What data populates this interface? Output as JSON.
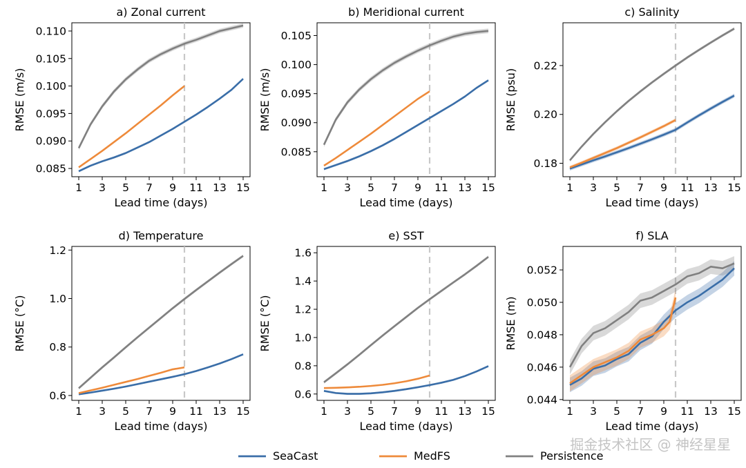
{
  "chart_data": [
    {
      "type": "line",
      "title": "a) Zonal current",
      "xlabel": "Lead time (days)",
      "ylabel": "RMSE (m/s)",
      "xlim": [
        1,
        15
      ],
      "ylim": [
        0.0835,
        0.1115
      ],
      "yticks": [
        0.085,
        0.09,
        0.095,
        0.1,
        0.105,
        0.11
      ],
      "yticklabels": [
        "0.085",
        "0.090",
        "0.095",
        "0.100",
        "0.105",
        "0.110"
      ],
      "xticks": [
        1,
        3,
        5,
        7,
        9,
        11,
        13,
        15
      ],
      "xticklabels": [
        "1",
        "3",
        "5",
        "7",
        "9",
        "11",
        "13",
        "15"
      ],
      "vline_x": 10,
      "series": [
        {
          "name": "SeaCast",
          "x": [
            1,
            2,
            3,
            4,
            5,
            6,
            7,
            8,
            9,
            10,
            11,
            12,
            13,
            14,
            15
          ],
          "values": [
            0.0845,
            0.0855,
            0.0863,
            0.087,
            0.0878,
            0.0888,
            0.0898,
            0.091,
            0.0922,
            0.0935,
            0.0948,
            0.0962,
            0.0977,
            0.0993,
            0.1013
          ],
          "band": 0.0002
        },
        {
          "name": "MedFS",
          "x": [
            1,
            2,
            3,
            4,
            5,
            6,
            7,
            8,
            9,
            10
          ],
          "values": [
            0.0852,
            0.0867,
            0.0882,
            0.0898,
            0.0914,
            0.0931,
            0.0948,
            0.0965,
            0.0983,
            0.1
          ],
          "band": 0.0001
        },
        {
          "name": "Persistence",
          "x": [
            1,
            2,
            3,
            4,
            5,
            6,
            7,
            8,
            9,
            10,
            11,
            12,
            13,
            14,
            15
          ],
          "values": [
            0.0887,
            0.093,
            0.0963,
            0.099,
            0.1012,
            0.103,
            0.1046,
            0.1058,
            0.1068,
            0.1077,
            0.1084,
            0.1092,
            0.11,
            0.1105,
            0.111
          ],
          "band": 0.0004
        }
      ]
    },
    {
      "type": "line",
      "title": "b) Meridional current",
      "xlabel": "Lead time (days)",
      "ylabel": "RMSE (m/s)",
      "xlim": [
        1,
        15
      ],
      "ylim": [
        0.0807,
        0.1072
      ],
      "yticks": [
        0.085,
        0.09,
        0.095,
        0.1,
        0.105
      ],
      "yticklabels": [
        "0.085",
        "0.090",
        "0.095",
        "0.100",
        "0.105"
      ],
      "xticks": [
        1,
        3,
        5,
        7,
        9,
        11,
        13,
        15
      ],
      "xticklabels": [
        "1",
        "3",
        "5",
        "7",
        "9",
        "11",
        "13",
        "15"
      ],
      "vline_x": 10,
      "series": [
        {
          "name": "SeaCast",
          "x": [
            1,
            2,
            3,
            4,
            5,
            6,
            7,
            8,
            9,
            10,
            11,
            12,
            13,
            14,
            15
          ],
          "values": [
            0.082,
            0.0827,
            0.0834,
            0.0842,
            0.0851,
            0.0861,
            0.0872,
            0.0884,
            0.0896,
            0.0908,
            0.092,
            0.0932,
            0.0945,
            0.096,
            0.0973
          ],
          "band": 0.0002
        },
        {
          "name": "MedFS",
          "x": [
            1,
            2,
            3,
            4,
            5,
            6,
            7,
            8,
            9,
            10
          ],
          "values": [
            0.0826,
            0.0839,
            0.0853,
            0.0867,
            0.0881,
            0.0896,
            0.0911,
            0.0926,
            0.0941,
            0.0954
          ],
          "band": 0.0001
        },
        {
          "name": "Persistence",
          "x": [
            1,
            2,
            3,
            4,
            5,
            6,
            7,
            8,
            9,
            10,
            11,
            12,
            13,
            14,
            15
          ],
          "values": [
            0.0862,
            0.0905,
            0.0935,
            0.0957,
            0.0975,
            0.099,
            0.1003,
            0.1014,
            0.1024,
            0.1033,
            0.1041,
            0.1048,
            0.1053,
            0.1056,
            0.1058
          ],
          "band": 0.0004
        }
      ]
    },
    {
      "type": "line",
      "title": "c) Salinity",
      "xlabel": "Lead time (days)",
      "ylabel": "RMSE (psu)",
      "xlim": [
        1,
        15
      ],
      "ylim": [
        0.1745,
        0.2375
      ],
      "yticks": [
        0.18,
        0.2,
        0.22
      ],
      "yticklabels": [
        "0.18",
        "0.20",
        "0.22"
      ],
      "xticks": [
        1,
        3,
        5,
        7,
        9,
        11,
        13,
        15
      ],
      "xticklabels": [
        "1",
        "3",
        "5",
        "7",
        "9",
        "11",
        "13",
        "15"
      ],
      "vline_x": 10,
      "series": [
        {
          "name": "SeaCast",
          "x": [
            1,
            2,
            3,
            4,
            5,
            6,
            7,
            8,
            9,
            10,
            11,
            12,
            13,
            14,
            15
          ],
          "values": [
            0.1778,
            0.1795,
            0.1812,
            0.1828,
            0.1845,
            0.1862,
            0.188,
            0.1898,
            0.1917,
            0.1937,
            0.1967,
            0.1996,
            0.2024,
            0.2051,
            0.2077
          ],
          "band": 0.0008
        },
        {
          "name": "MedFS",
          "x": [
            1,
            2,
            3,
            4,
            5,
            6,
            7,
            8,
            9,
            10
          ],
          "values": [
            0.1783,
            0.1802,
            0.1822,
            0.1842,
            0.1862,
            0.1884,
            0.1906,
            0.1929,
            0.1952,
            0.1977
          ],
          "band": 0.0007
        },
        {
          "name": "Persistence",
          "x": [
            1,
            2,
            3,
            4,
            5,
            6,
            7,
            8,
            9,
            10,
            11,
            12,
            13,
            14,
            15
          ],
          "values": [
            0.1812,
            0.1868,
            0.192,
            0.1968,
            0.2013,
            0.2055,
            0.2094,
            0.2131,
            0.2166,
            0.22,
            0.2233,
            0.2264,
            0.2294,
            0.2323,
            0.2351
          ],
          "band": 0.0006
        }
      ]
    },
    {
      "type": "line",
      "title": "d) Temperature",
      "xlabel": "Lead time (days)",
      "ylabel": "RMSE (°C)",
      "xlim": [
        1,
        15
      ],
      "ylim": [
        0.58,
        1.215
      ],
      "yticks": [
        0.6,
        0.8,
        1.0,
        1.2
      ],
      "yticklabels": [
        "0.6",
        "0.8",
        "1.0",
        "1.2"
      ],
      "xticks": [
        1,
        3,
        5,
        7,
        9,
        11,
        13,
        15
      ],
      "xticklabels": [
        "1",
        "3",
        "5",
        "7",
        "9",
        "11",
        "13",
        "15"
      ],
      "vline_x": 10,
      "series": [
        {
          "name": "SeaCast",
          "x": [
            1,
            2,
            3,
            4,
            5,
            6,
            7,
            8,
            9,
            10,
            11,
            12,
            13,
            14,
            15
          ],
          "values": [
            0.605,
            0.612,
            0.62,
            0.628,
            0.637,
            0.647,
            0.657,
            0.667,
            0.677,
            0.688,
            0.701,
            0.716,
            0.732,
            0.75,
            0.77
          ],
          "band": 0.004
        },
        {
          "name": "MedFS",
          "x": [
            1,
            2,
            3,
            4,
            5,
            6,
            7,
            8,
            9,
            10
          ],
          "values": [
            0.61,
            0.621,
            0.632,
            0.644,
            0.656,
            0.668,
            0.681,
            0.694,
            0.708,
            0.716
          ],
          "band": 0.003
        },
        {
          "name": "Persistence",
          "x": [
            1,
            2,
            3,
            4,
            5,
            6,
            7,
            8,
            9,
            10,
            11,
            12,
            13,
            14,
            15
          ],
          "values": [
            0.63,
            0.673,
            0.716,
            0.757,
            0.799,
            0.84,
            0.88,
            0.92,
            0.96,
            0.998,
            1.035,
            1.071,
            1.107,
            1.142,
            1.176
          ],
          "band": 0.006
        }
      ]
    },
    {
      "type": "line",
      "title": "e) SST",
      "xlabel": "Lead time (days)",
      "ylabel": "RMSE (°C)",
      "xlim": [
        1,
        15
      ],
      "ylim": [
        0.555,
        1.645
      ],
      "yticks": [
        0.6,
        0.8,
        1.0,
        1.2,
        1.4,
        1.6
      ],
      "yticklabels": [
        "0.6",
        "0.8",
        "1.0",
        "1.2",
        "1.4",
        "1.6"
      ],
      "xticks": [
        1,
        3,
        5,
        7,
        9,
        11,
        13,
        15
      ],
      "xticklabels": [
        "1",
        "3",
        "5",
        "7",
        "9",
        "11",
        "13",
        "15"
      ],
      "vline_x": 10,
      "series": [
        {
          "name": "SeaCast",
          "x": [
            1,
            2,
            3,
            4,
            5,
            6,
            7,
            8,
            9,
            10,
            11,
            12,
            13,
            14,
            15
          ],
          "values": [
            0.622,
            0.607,
            0.601,
            0.601,
            0.605,
            0.612,
            0.622,
            0.634,
            0.648,
            0.663,
            0.68,
            0.7,
            0.727,
            0.76,
            0.797
          ],
          "band": 0.007
        },
        {
          "name": "MedFS",
          "x": [
            1,
            2,
            3,
            4,
            5,
            6,
            7,
            8,
            9,
            10
          ],
          "values": [
            0.642,
            0.644,
            0.647,
            0.651,
            0.657,
            0.665,
            0.676,
            0.69,
            0.708,
            0.731
          ],
          "band": 0.004
        },
        {
          "name": "Persistence",
          "x": [
            1,
            2,
            3,
            4,
            5,
            6,
            7,
            8,
            9,
            10,
            11,
            12,
            13,
            14,
            15
          ],
          "values": [
            0.683,
            0.746,
            0.81,
            0.877,
            0.946,
            1.014,
            1.08,
            1.145,
            1.21,
            1.271,
            1.33,
            1.389,
            1.447,
            1.508,
            1.571
          ],
          "band": 0.01
        }
      ]
    },
    {
      "type": "line",
      "title": "f) SLA",
      "xlabel": "Lead time (days)",
      "ylabel": "RMSE (m)",
      "xlim": [
        1,
        15
      ],
      "ylim": [
        0.04395,
        0.05345
      ],
      "yticks": [
        0.044,
        0.046,
        0.048,
        0.05,
        0.052
      ],
      "yticklabels": [
        "0.044",
        "0.046",
        "0.048",
        "0.050",
        "0.052"
      ],
      "xticks": [
        1,
        3,
        5,
        7,
        9,
        11,
        13,
        15
      ],
      "xticklabels": [
        "1",
        "3",
        "5",
        "7",
        "9",
        "11",
        "13",
        "15"
      ],
      "vline_x": 10,
      "series": [
        {
          "name": "SeaCast",
          "x": [
            1,
            2,
            3,
            4,
            5,
            6,
            7,
            8,
            9,
            10,
            11,
            12,
            13,
            14,
            15
          ],
          "values": [
            0.0449,
            0.0453,
            0.0459,
            0.0461,
            0.0465,
            0.0468,
            0.0475,
            0.0479,
            0.0488,
            0.0495,
            0.05,
            0.0504,
            0.0509,
            0.0514,
            0.0521
          ],
          "band": 0.00045
        },
        {
          "name": "MedFS",
          "x": [
            1,
            2,
            3,
            4,
            5,
            6,
            7,
            8,
            9,
            9.5,
            10
          ],
          "values": [
            0.045,
            0.0455,
            0.046,
            0.0463,
            0.0466,
            0.047,
            0.0477,
            0.048,
            0.0484,
            0.0488,
            0.0503
          ],
          "band": 0.0005
        },
        {
          "name": "Persistence",
          "x": [
            1,
            2,
            3,
            4,
            5,
            6,
            7,
            8,
            9,
            10,
            11,
            12,
            13,
            14,
            15
          ],
          "values": [
            0.046,
            0.0473,
            0.0481,
            0.0484,
            0.0489,
            0.0494,
            0.0501,
            0.0503,
            0.0507,
            0.0511,
            0.0516,
            0.0518,
            0.0522,
            0.0521,
            0.0524
          ],
          "band": 0.00045
        }
      ]
    }
  ],
  "legend": [
    {
      "name": "SeaCast",
      "color": "#3a6ea8"
    },
    {
      "name": "MedFS",
      "color": "#ee8a3a"
    },
    {
      "name": "Persistence",
      "color": "#808080"
    }
  ],
  "colors": {
    "SeaCast": "#3a6ea8",
    "MedFS": "#ee8a3a",
    "Persistence": "#808080",
    "vline": "#c8c8c8"
  },
  "watermark": "掘金技术社区 @ 神经星星"
}
